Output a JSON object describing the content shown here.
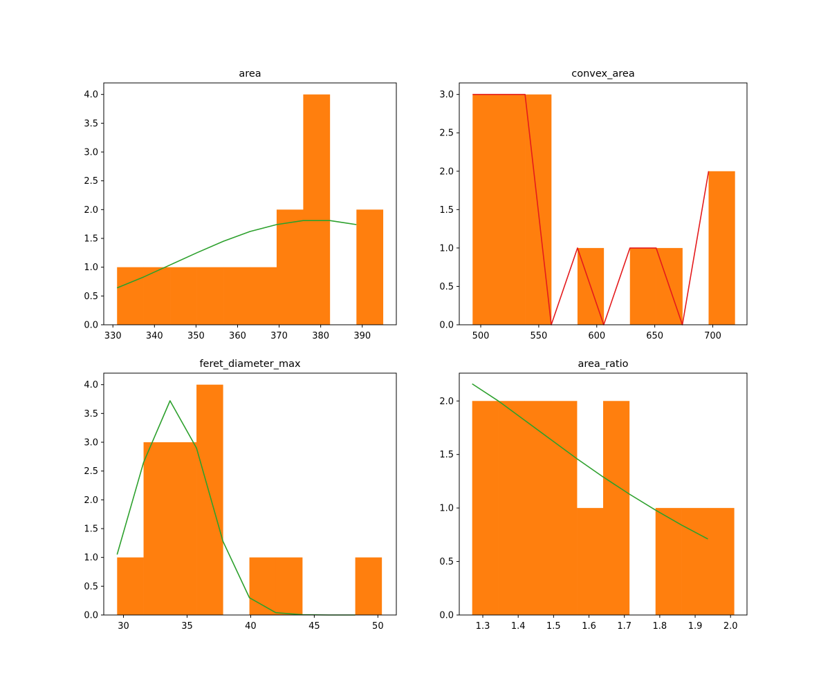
{
  "chart_data": [
    {
      "type": "bar",
      "title": "area",
      "xlabel": "",
      "ylabel": "",
      "xlim": [
        327.8,
        398.2
      ],
      "ylim": [
        0,
        4.2
      ],
      "xticks": [
        330,
        340,
        350,
        360,
        370,
        380,
        390
      ],
      "yticks": [
        0.0,
        0.5,
        1.0,
        1.5,
        2.0,
        2.5,
        3.0,
        3.5,
        4.0
      ],
      "ytick_decimals": 1,
      "bins": [
        {
          "x0": 331.0,
          "x1": 337.4,
          "count": 1
        },
        {
          "x0": 337.4,
          "x1": 343.8,
          "count": 1
        },
        {
          "x0": 343.8,
          "x1": 350.2,
          "count": 1
        },
        {
          "x0": 350.2,
          "x1": 356.6,
          "count": 1
        },
        {
          "x0": 356.6,
          "x1": 363.0,
          "count": 1
        },
        {
          "x0": 363.0,
          "x1": 369.4,
          "count": 1
        },
        {
          "x0": 369.4,
          "x1": 375.8,
          "count": 2
        },
        {
          "x0": 375.8,
          "x1": 382.2,
          "count": 4
        },
        {
          "x0": 382.2,
          "x1": 388.6,
          "count": 0
        },
        {
          "x0": 388.6,
          "x1": 395.0,
          "count": 2
        }
      ],
      "bar_color": "#ff7f0e",
      "line": {
        "color": "#2ca02c",
        "x": [
          331.0,
          337.4,
          343.8,
          350.2,
          356.6,
          363.0,
          369.4,
          375.8,
          382.2,
          388.6
        ],
        "y": [
          0.64,
          0.83,
          1.04,
          1.25,
          1.45,
          1.62,
          1.74,
          1.81,
          1.81,
          1.74
        ]
      }
    },
    {
      "type": "bar",
      "title": "convex_area",
      "xlabel": "",
      "ylabel": "",
      "xlim": [
        481.5,
        729.5
      ],
      "ylim": [
        0,
        3.15
      ],
      "xticks": [
        500,
        550,
        600,
        650,
        700
      ],
      "yticks": [
        0.0,
        0.5,
        1.0,
        1.5,
        2.0,
        2.5,
        3.0
      ],
      "ytick_decimals": 1,
      "bins": [
        {
          "x0": 493.0,
          "x1": 515.6,
          "count": 3
        },
        {
          "x0": 515.6,
          "x1": 538.2,
          "count": 3
        },
        {
          "x0": 538.2,
          "x1": 560.8,
          "count": 3
        },
        {
          "x0": 560.8,
          "x1": 583.4,
          "count": 0
        },
        {
          "x0": 583.4,
          "x1": 606.0,
          "count": 1
        },
        {
          "x0": 606.0,
          "x1": 628.6,
          "count": 0
        },
        {
          "x0": 628.6,
          "x1": 651.2,
          "count": 1
        },
        {
          "x0": 651.2,
          "x1": 673.8,
          "count": 1
        },
        {
          "x0": 673.8,
          "x1": 696.4,
          "count": 0
        },
        {
          "x0": 696.4,
          "x1": 719.0,
          "count": 2
        }
      ],
      "bar_color": "#ff7f0e",
      "line": {
        "color": "#e41a1c",
        "x": [
          493.0,
          515.6,
          538.2,
          560.8,
          583.4,
          606.0,
          628.6,
          651.2,
          673.8,
          696.4
        ],
        "y": [
          3,
          3,
          3,
          0,
          1,
          0,
          1,
          1,
          0,
          2
        ]
      }
    },
    {
      "type": "bar",
      "title": "feret_diameter_max",
      "xlabel": "",
      "ylabel": "",
      "xlim": [
        28.45,
        51.45
      ],
      "ylim": [
        0,
        4.2
      ],
      "xticks": [
        30,
        35,
        40,
        45,
        50
      ],
      "yticks": [
        0.0,
        0.5,
        1.0,
        1.5,
        2.0,
        2.5,
        3.0,
        3.5,
        4.0
      ],
      "ytick_decimals": 1,
      "bins": [
        {
          "x0": 29.5,
          "x1": 31.58,
          "count": 1
        },
        {
          "x0": 31.58,
          "x1": 33.66,
          "count": 3
        },
        {
          "x0": 33.66,
          "x1": 35.74,
          "count": 3
        },
        {
          "x0": 35.74,
          "x1": 37.82,
          "count": 4
        },
        {
          "x0": 37.82,
          "x1": 39.9,
          "count": 0
        },
        {
          "x0": 39.9,
          "x1": 41.98,
          "count": 1
        },
        {
          "x0": 41.98,
          "x1": 44.06,
          "count": 1
        },
        {
          "x0": 44.06,
          "x1": 46.14,
          "count": 0
        },
        {
          "x0": 46.14,
          "x1": 48.22,
          "count": 0
        },
        {
          "x0": 48.22,
          "x1": 50.3,
          "count": 1
        }
      ],
      "bar_color": "#ff7f0e",
      "line": {
        "color": "#2ca02c",
        "x": [
          29.5,
          31.58,
          33.66,
          35.74,
          37.82,
          39.9,
          41.98,
          44.06,
          46.14,
          48.22
        ],
        "y": [
          1.05,
          2.65,
          3.72,
          2.9,
          1.28,
          0.3,
          0.04,
          0.005,
          0.0,
          0.0
        ]
      }
    },
    {
      "type": "bar",
      "title": "area_ratio",
      "xlabel": "",
      "ylabel": "",
      "xlim": [
        1.2335,
        2.0465
      ],
      "ylim": [
        0,
        2.26
      ],
      "xticks": [
        1.3,
        1.4,
        1.5,
        1.6,
        1.7,
        1.8,
        1.9,
        2.0
      ],
      "yticks": [
        0.0,
        0.5,
        1.0,
        1.5,
        2.0
      ],
      "ytick_decimals": 1,
      "bins": [
        {
          "x0": 1.27,
          "x1": 1.344,
          "count": 2
        },
        {
          "x0": 1.344,
          "x1": 1.418,
          "count": 2
        },
        {
          "x0": 1.418,
          "x1": 1.492,
          "count": 2
        },
        {
          "x0": 1.492,
          "x1": 1.566,
          "count": 2
        },
        {
          "x0": 1.566,
          "x1": 1.64,
          "count": 1
        },
        {
          "x0": 1.64,
          "x1": 1.714,
          "count": 2
        },
        {
          "x0": 1.714,
          "x1": 1.788,
          "count": 0
        },
        {
          "x0": 1.788,
          "x1": 1.862,
          "count": 1
        },
        {
          "x0": 1.862,
          "x1": 1.936,
          "count": 1
        },
        {
          "x0": 1.936,
          "x1": 2.01,
          "count": 1
        }
      ],
      "bar_color": "#ff7f0e",
      "line": {
        "color": "#2ca02c",
        "x": [
          1.27,
          1.344,
          1.418,
          1.492,
          1.566,
          1.64,
          1.714,
          1.788,
          1.862,
          1.936
        ],
        "y": [
          2.16,
          2.0,
          1.82,
          1.64,
          1.46,
          1.29,
          1.13,
          0.98,
          0.84,
          0.71
        ]
      }
    }
  ]
}
